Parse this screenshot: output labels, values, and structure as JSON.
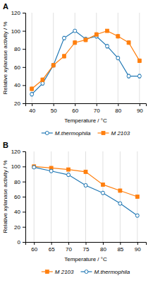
{
  "chart_data": [
    {
      "type": "line",
      "title": "A",
      "xlabel": "Temperature / °C",
      "ylabel": "Relative xylanase activity / %",
      "x": [
        40,
        45,
        50,
        55,
        60,
        65,
        70,
        75,
        80,
        85,
        90
      ],
      "series": [
        {
          "name": "M.thermophila",
          "marker": "open-circle",
          "line_style": "solid",
          "values": [
            30,
            42,
            62,
            92,
            100,
            91,
            94,
            83,
            70,
            50,
            50
          ],
          "errors": [
            2,
            2,
            2,
            2,
            1,
            2,
            2,
            2,
            2,
            2,
            2
          ]
        },
        {
          "name": "M 2103",
          "marker": "square",
          "line_style": "solid",
          "values": [
            36,
            46,
            62,
            72,
            87,
            90,
            96,
            100,
            94,
            87,
            67
          ],
          "errors": [
            2,
            2,
            2,
            2,
            2,
            2,
            2,
            1,
            2,
            2,
            2
          ]
        }
      ],
      "xlim": [
        37,
        93
      ],
      "ylim": [
        20,
        120
      ],
      "xticks": [
        40,
        50,
        60,
        70,
        80,
        90
      ],
      "yticks": [
        20,
        40,
        60,
        80,
        100,
        120
      ],
      "grid": "x",
      "legend": "bottom"
    },
    {
      "type": "line",
      "title": "B",
      "xlabel": "Temperature / °C",
      "ylabel": "Relative xylanase activity / %",
      "x": [
        60,
        65,
        70,
        75,
        80,
        85,
        90
      ],
      "series": [
        {
          "name": "M 2103",
          "marker": "square",
          "line_style": "solid",
          "values": [
            100,
            98,
            96,
            93,
            76,
            68,
            60
          ],
          "errors": [
            1,
            1.5,
            1.5,
            2,
            2,
            2,
            2
          ]
        },
        {
          "name": "M.thermophila",
          "marker": "open-circle",
          "line_style": "solid",
          "values": [
            99,
            94,
            89,
            75,
            65,
            51,
            35
          ],
          "errors": [
            2,
            2,
            2,
            2,
            2,
            2,
            2
          ]
        }
      ],
      "xlim": [
        57.5,
        92.5
      ],
      "ylim": [
        0,
        120
      ],
      "xticks": [
        60,
        65,
        70,
        75,
        80,
        85,
        90
      ],
      "yticks": [
        0,
        20,
        40,
        60,
        80,
        100,
        120
      ],
      "grid": "x",
      "legend": "bottom"
    }
  ]
}
